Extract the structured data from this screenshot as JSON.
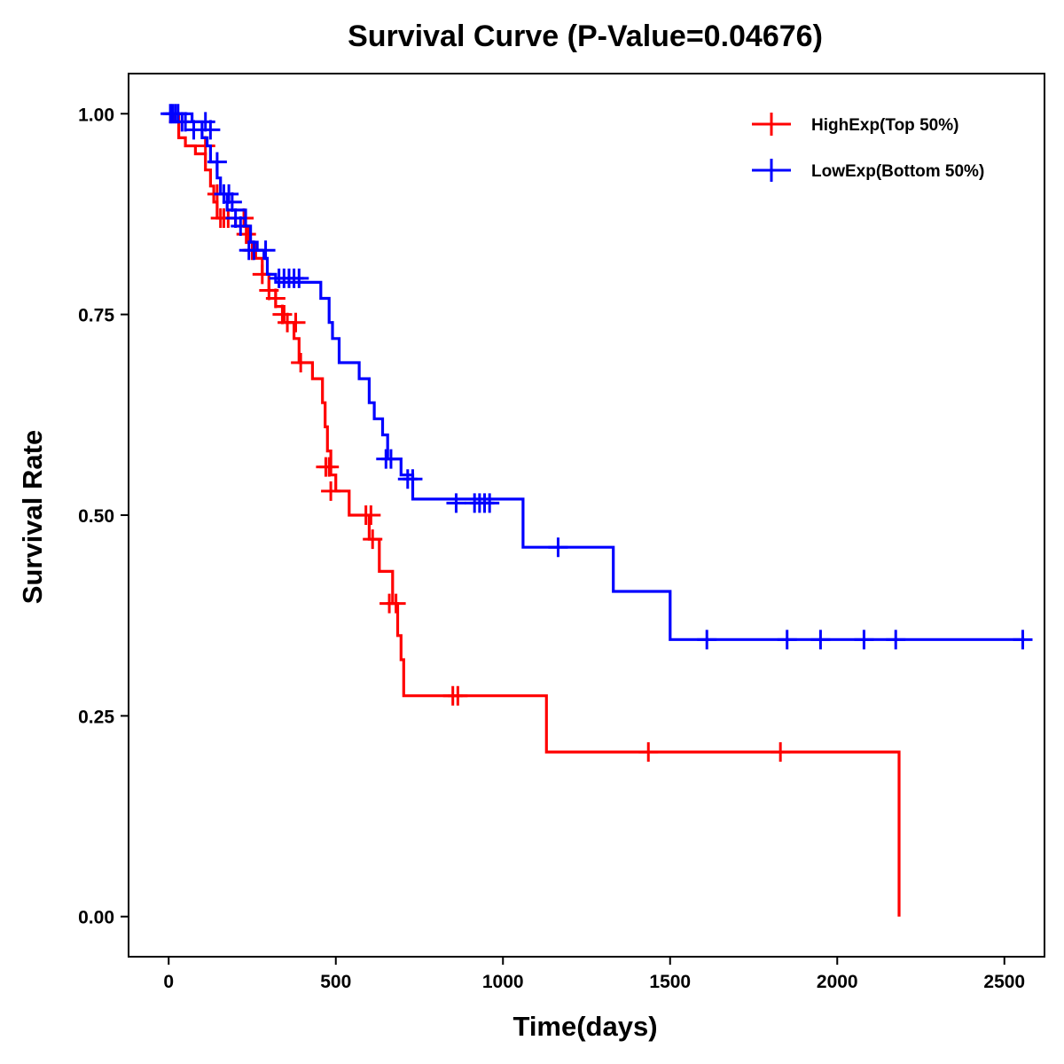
{
  "chart_data": {
    "type": "line",
    "title": "Survival Curve (P-Value=0.04676)",
    "xlabel": "Time(days)",
    "ylabel": "Survival Rate",
    "xlim": [
      -120,
      2620
    ],
    "ylim": [
      -0.05,
      1.05
    ],
    "x_ticks": [
      0,
      500,
      1000,
      1500,
      2000,
      2500
    ],
    "x_tick_labels": [
      "0",
      "500",
      "1000",
      "1500",
      "2000",
      "2500"
    ],
    "y_ticks": [
      0,
      0.25,
      0.5,
      0.75,
      1.0
    ],
    "y_tick_labels": [
      "0.00",
      "0.25",
      "0.50",
      "0.75",
      "1.00"
    ],
    "grid": false,
    "legend_position": "top-right",
    "series": [
      {
        "name": "HighExp(Top 50%)",
        "color": "#ff0000",
        "steps": [
          [
            0,
            1.0
          ],
          [
            15,
            0.99
          ],
          [
            30,
            0.97
          ],
          [
            50,
            0.96
          ],
          [
            80,
            0.95
          ],
          [
            110,
            0.93
          ],
          [
            125,
            0.91
          ],
          [
            135,
            0.89
          ],
          [
            145,
            0.87
          ],
          [
            200,
            0.86
          ],
          [
            240,
            0.84
          ],
          [
            260,
            0.82
          ],
          [
            280,
            0.8
          ],
          [
            300,
            0.78
          ],
          [
            320,
            0.76
          ],
          [
            345,
            0.74
          ],
          [
            375,
            0.72
          ],
          [
            390,
            0.69
          ],
          [
            430,
            0.67
          ],
          [
            460,
            0.64
          ],
          [
            468,
            0.61
          ],
          [
            475,
            0.58
          ],
          [
            485,
            0.55
          ],
          [
            500,
            0.53
          ],
          [
            540,
            0.5
          ],
          [
            600,
            0.47
          ],
          [
            630,
            0.43
          ],
          [
            670,
            0.39
          ],
          [
            685,
            0.35
          ],
          [
            695,
            0.32
          ],
          [
            703,
            0.275
          ],
          [
            1130,
            0.205
          ],
          [
            2185,
            0.0
          ]
        ],
        "end_time": 2185,
        "censored": [
          [
            30,
            0.99
          ],
          [
            110,
            0.96
          ],
          [
            145,
            0.9
          ],
          [
            155,
            0.87
          ],
          [
            165,
            0.87
          ],
          [
            178,
            0.87
          ],
          [
            225,
            0.87
          ],
          [
            232,
            0.85
          ],
          [
            250,
            0.83
          ],
          [
            280,
            0.8
          ],
          [
            300,
            0.78
          ],
          [
            320,
            0.77
          ],
          [
            340,
            0.75
          ],
          [
            355,
            0.74
          ],
          [
            380,
            0.74
          ],
          [
            395,
            0.69
          ],
          [
            470,
            0.56
          ],
          [
            480,
            0.56
          ],
          [
            485,
            0.53
          ],
          [
            590,
            0.5
          ],
          [
            605,
            0.5
          ],
          [
            610,
            0.47
          ],
          [
            660,
            0.39
          ],
          [
            680,
            0.39
          ],
          [
            850,
            0.275
          ],
          [
            865,
            0.275
          ],
          [
            1435,
            0.205
          ],
          [
            1830,
            0.205
          ]
        ]
      },
      {
        "name": "LowExp(Bottom 50%)",
        "color": "#0000ff",
        "steps": [
          [
            0,
            1.0
          ],
          [
            70,
            0.99
          ],
          [
            100,
            0.97
          ],
          [
            115,
            0.96
          ],
          [
            125,
            0.94
          ],
          [
            145,
            0.92
          ],
          [
            155,
            0.9
          ],
          [
            175,
            0.88
          ],
          [
            230,
            0.86
          ],
          [
            245,
            0.84
          ],
          [
            265,
            0.83
          ],
          [
            285,
            0.82
          ],
          [
            295,
            0.8
          ],
          [
            320,
            0.79
          ],
          [
            455,
            0.77
          ],
          [
            480,
            0.74
          ],
          [
            490,
            0.72
          ],
          [
            510,
            0.69
          ],
          [
            570,
            0.67
          ],
          [
            600,
            0.64
          ],
          [
            615,
            0.62
          ],
          [
            640,
            0.6
          ],
          [
            655,
            0.57
          ],
          [
            695,
            0.55
          ],
          [
            730,
            0.52
          ],
          [
            1060,
            0.46
          ],
          [
            1330,
            0.405
          ],
          [
            1500,
            0.345
          ]
        ],
        "end_time": 2560,
        "censored": [
          [
            5,
            1.0
          ],
          [
            12,
            1.0
          ],
          [
            20,
            1.0
          ],
          [
            28,
            1.0
          ],
          [
            40,
            0.99
          ],
          [
            50,
            0.99
          ],
          [
            75,
            0.98
          ],
          [
            110,
            0.99
          ],
          [
            125,
            0.98
          ],
          [
            145,
            0.94
          ],
          [
            165,
            0.9
          ],
          [
            180,
            0.9
          ],
          [
            190,
            0.89
          ],
          [
            200,
            0.87
          ],
          [
            215,
            0.86
          ],
          [
            240,
            0.83
          ],
          [
            255,
            0.83
          ],
          [
            290,
            0.83
          ],
          [
            330,
            0.795
          ],
          [
            345,
            0.795
          ],
          [
            360,
            0.795
          ],
          [
            375,
            0.795
          ],
          [
            390,
            0.795
          ],
          [
            650,
            0.57
          ],
          [
            665,
            0.57
          ],
          [
            715,
            0.545
          ],
          [
            730,
            0.545
          ],
          [
            860,
            0.515
          ],
          [
            915,
            0.515
          ],
          [
            930,
            0.515
          ],
          [
            945,
            0.515
          ],
          [
            960,
            0.515
          ],
          [
            1165,
            0.46
          ],
          [
            1610,
            0.345
          ],
          [
            1850,
            0.345
          ],
          [
            1950,
            0.345
          ],
          [
            2080,
            0.345
          ],
          [
            2175,
            0.345
          ],
          [
            2555,
            0.345
          ]
        ]
      }
    ]
  }
}
